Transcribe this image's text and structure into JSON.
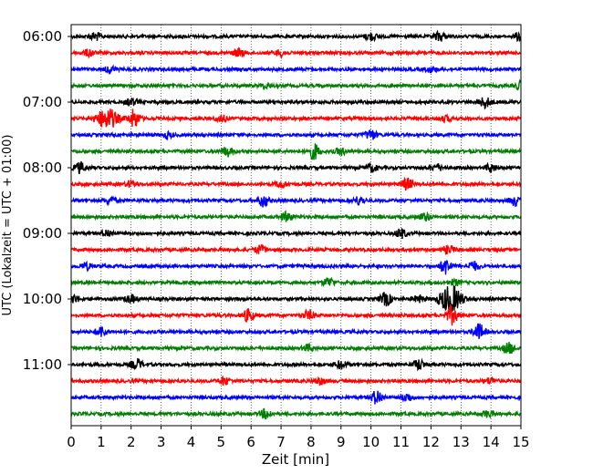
{
  "chart_data": {
    "type": "line",
    "title": "",
    "xlabel": "Zeit  [min]",
    "ylabel": "UTC (Lokalzeit = UTC + 01:00)",
    "xlim": [
      0,
      15
    ],
    "x_ticks": [
      0,
      1,
      2,
      3,
      4,
      5,
      6,
      7,
      8,
      9,
      10,
      11,
      12,
      13,
      14,
      15
    ],
    "y_tick_labels": [
      "06:00",
      "07:00",
      "08:00",
      "09:00",
      "10:00",
      "11:00"
    ],
    "y_tick_rows": [
      0,
      4,
      8,
      12,
      16,
      20
    ],
    "row_minutes": 15,
    "grid": "vertical dotted at each minute",
    "color_cycle": [
      "#000000",
      "#ff0000",
      "#0000ff",
      "#008000"
    ],
    "traces": [
      {
        "start": "06:00",
        "color": "#000000",
        "events": [
          [
            0.8,
            0.6
          ],
          [
            10.0,
            0.6
          ],
          [
            12.3,
            0.7
          ],
          [
            15.0,
            0.9
          ]
        ]
      },
      {
        "start": "06:15",
        "color": "#ff0000",
        "events": [
          [
            0.6,
            0.5
          ],
          [
            5.6,
            0.6
          ],
          [
            7.0,
            0.5
          ]
        ]
      },
      {
        "start": "06:30",
        "color": "#0000ff",
        "events": [
          [
            1.3,
            0.5
          ],
          [
            12.0,
            0.4
          ]
        ]
      },
      {
        "start": "06:45",
        "color": "#008000",
        "events": [
          [
            6.5,
            0.4
          ],
          [
            15.0,
            0.7
          ]
        ]
      },
      {
        "start": "07:00",
        "color": "#000000",
        "events": [
          [
            2.0,
            0.5
          ],
          [
            13.8,
            0.8
          ]
        ]
      },
      {
        "start": "07:15",
        "color": "#ff0000",
        "events": [
          [
            1.2,
            1.6
          ],
          [
            2.1,
            1.4
          ],
          [
            5.0,
            0.5
          ],
          [
            12.5,
            0.4
          ]
        ]
      },
      {
        "start": "07:30",
        "color": "#0000ff",
        "events": [
          [
            3.2,
            0.4
          ],
          [
            10.0,
            0.8
          ]
        ]
      },
      {
        "start": "07:45",
        "color": "#008000",
        "events": [
          [
            5.2,
            0.7
          ],
          [
            8.1,
            1.2
          ],
          [
            9.0,
            0.5
          ]
        ]
      },
      {
        "start": "08:00",
        "color": "#000000",
        "events": [
          [
            0.3,
            0.8
          ],
          [
            10.0,
            0.6
          ],
          [
            12.2,
            0.5
          ],
          [
            14.0,
            0.6
          ]
        ]
      },
      {
        "start": "08:15",
        "color": "#ff0000",
        "events": [
          [
            2.0,
            0.5
          ],
          [
            7.0,
            0.5
          ],
          [
            11.2,
            0.9
          ]
        ]
      },
      {
        "start": "08:30",
        "color": "#0000ff",
        "events": [
          [
            1.3,
            0.6
          ],
          [
            6.4,
            0.9
          ],
          [
            9.6,
            0.6
          ],
          [
            14.8,
            0.7
          ]
        ]
      },
      {
        "start": "08:45",
        "color": "#008000",
        "events": [
          [
            7.2,
            0.7
          ],
          [
            11.8,
            0.6
          ]
        ]
      },
      {
        "start": "09:00",
        "color": "#000000",
        "events": [
          [
            1.2,
            0.5
          ],
          [
            11.0,
            0.7
          ]
        ]
      },
      {
        "start": "09:15",
        "color": "#ff0000",
        "events": [
          [
            6.3,
            0.6
          ],
          [
            12.6,
            0.6
          ]
        ]
      },
      {
        "start": "09:30",
        "color": "#0000ff",
        "events": [
          [
            0.5,
            0.5
          ],
          [
            12.5,
            1.2
          ],
          [
            13.4,
            0.7
          ]
        ]
      },
      {
        "start": "09:45",
        "color": "#008000",
        "events": [
          [
            8.6,
            0.7
          ],
          [
            12.8,
            0.4
          ]
        ]
      },
      {
        "start": "10:00",
        "color": "#000000",
        "events": [
          [
            0.1,
            0.6
          ],
          [
            2.0,
            0.6
          ],
          [
            10.5,
            1.0
          ],
          [
            11.6,
            0.5
          ],
          [
            12.65,
            2.2
          ]
        ]
      },
      {
        "start": "10:15",
        "color": "#ff0000",
        "events": [
          [
            5.9,
            0.9
          ],
          [
            7.9,
            0.7
          ],
          [
            12.7,
            1.4
          ]
        ]
      },
      {
        "start": "10:30",
        "color": "#0000ff",
        "events": [
          [
            1.0,
            0.8
          ],
          [
            13.6,
            1.2
          ]
        ]
      },
      {
        "start": "10:45",
        "color": "#008000",
        "events": [
          [
            7.9,
            0.5
          ],
          [
            14.6,
            0.8
          ]
        ]
      },
      {
        "start": "11:00",
        "color": "#000000",
        "events": [
          [
            2.2,
            0.8
          ],
          [
            9.0,
            0.6
          ],
          [
            11.6,
            0.8
          ]
        ]
      },
      {
        "start": "11:15",
        "color": "#ff0000",
        "events": [
          [
            5.1,
            0.6
          ],
          [
            8.3,
            0.5
          ],
          [
            14.0,
            0.5
          ]
        ]
      },
      {
        "start": "11:30",
        "color": "#0000ff",
        "events": [
          [
            10.2,
            1.1
          ],
          [
            11.2,
            0.6
          ]
        ]
      },
      {
        "start": "11:45",
        "color": "#008000",
        "events": [
          [
            6.5,
            0.7
          ],
          [
            13.9,
            0.5
          ]
        ]
      }
    ]
  }
}
